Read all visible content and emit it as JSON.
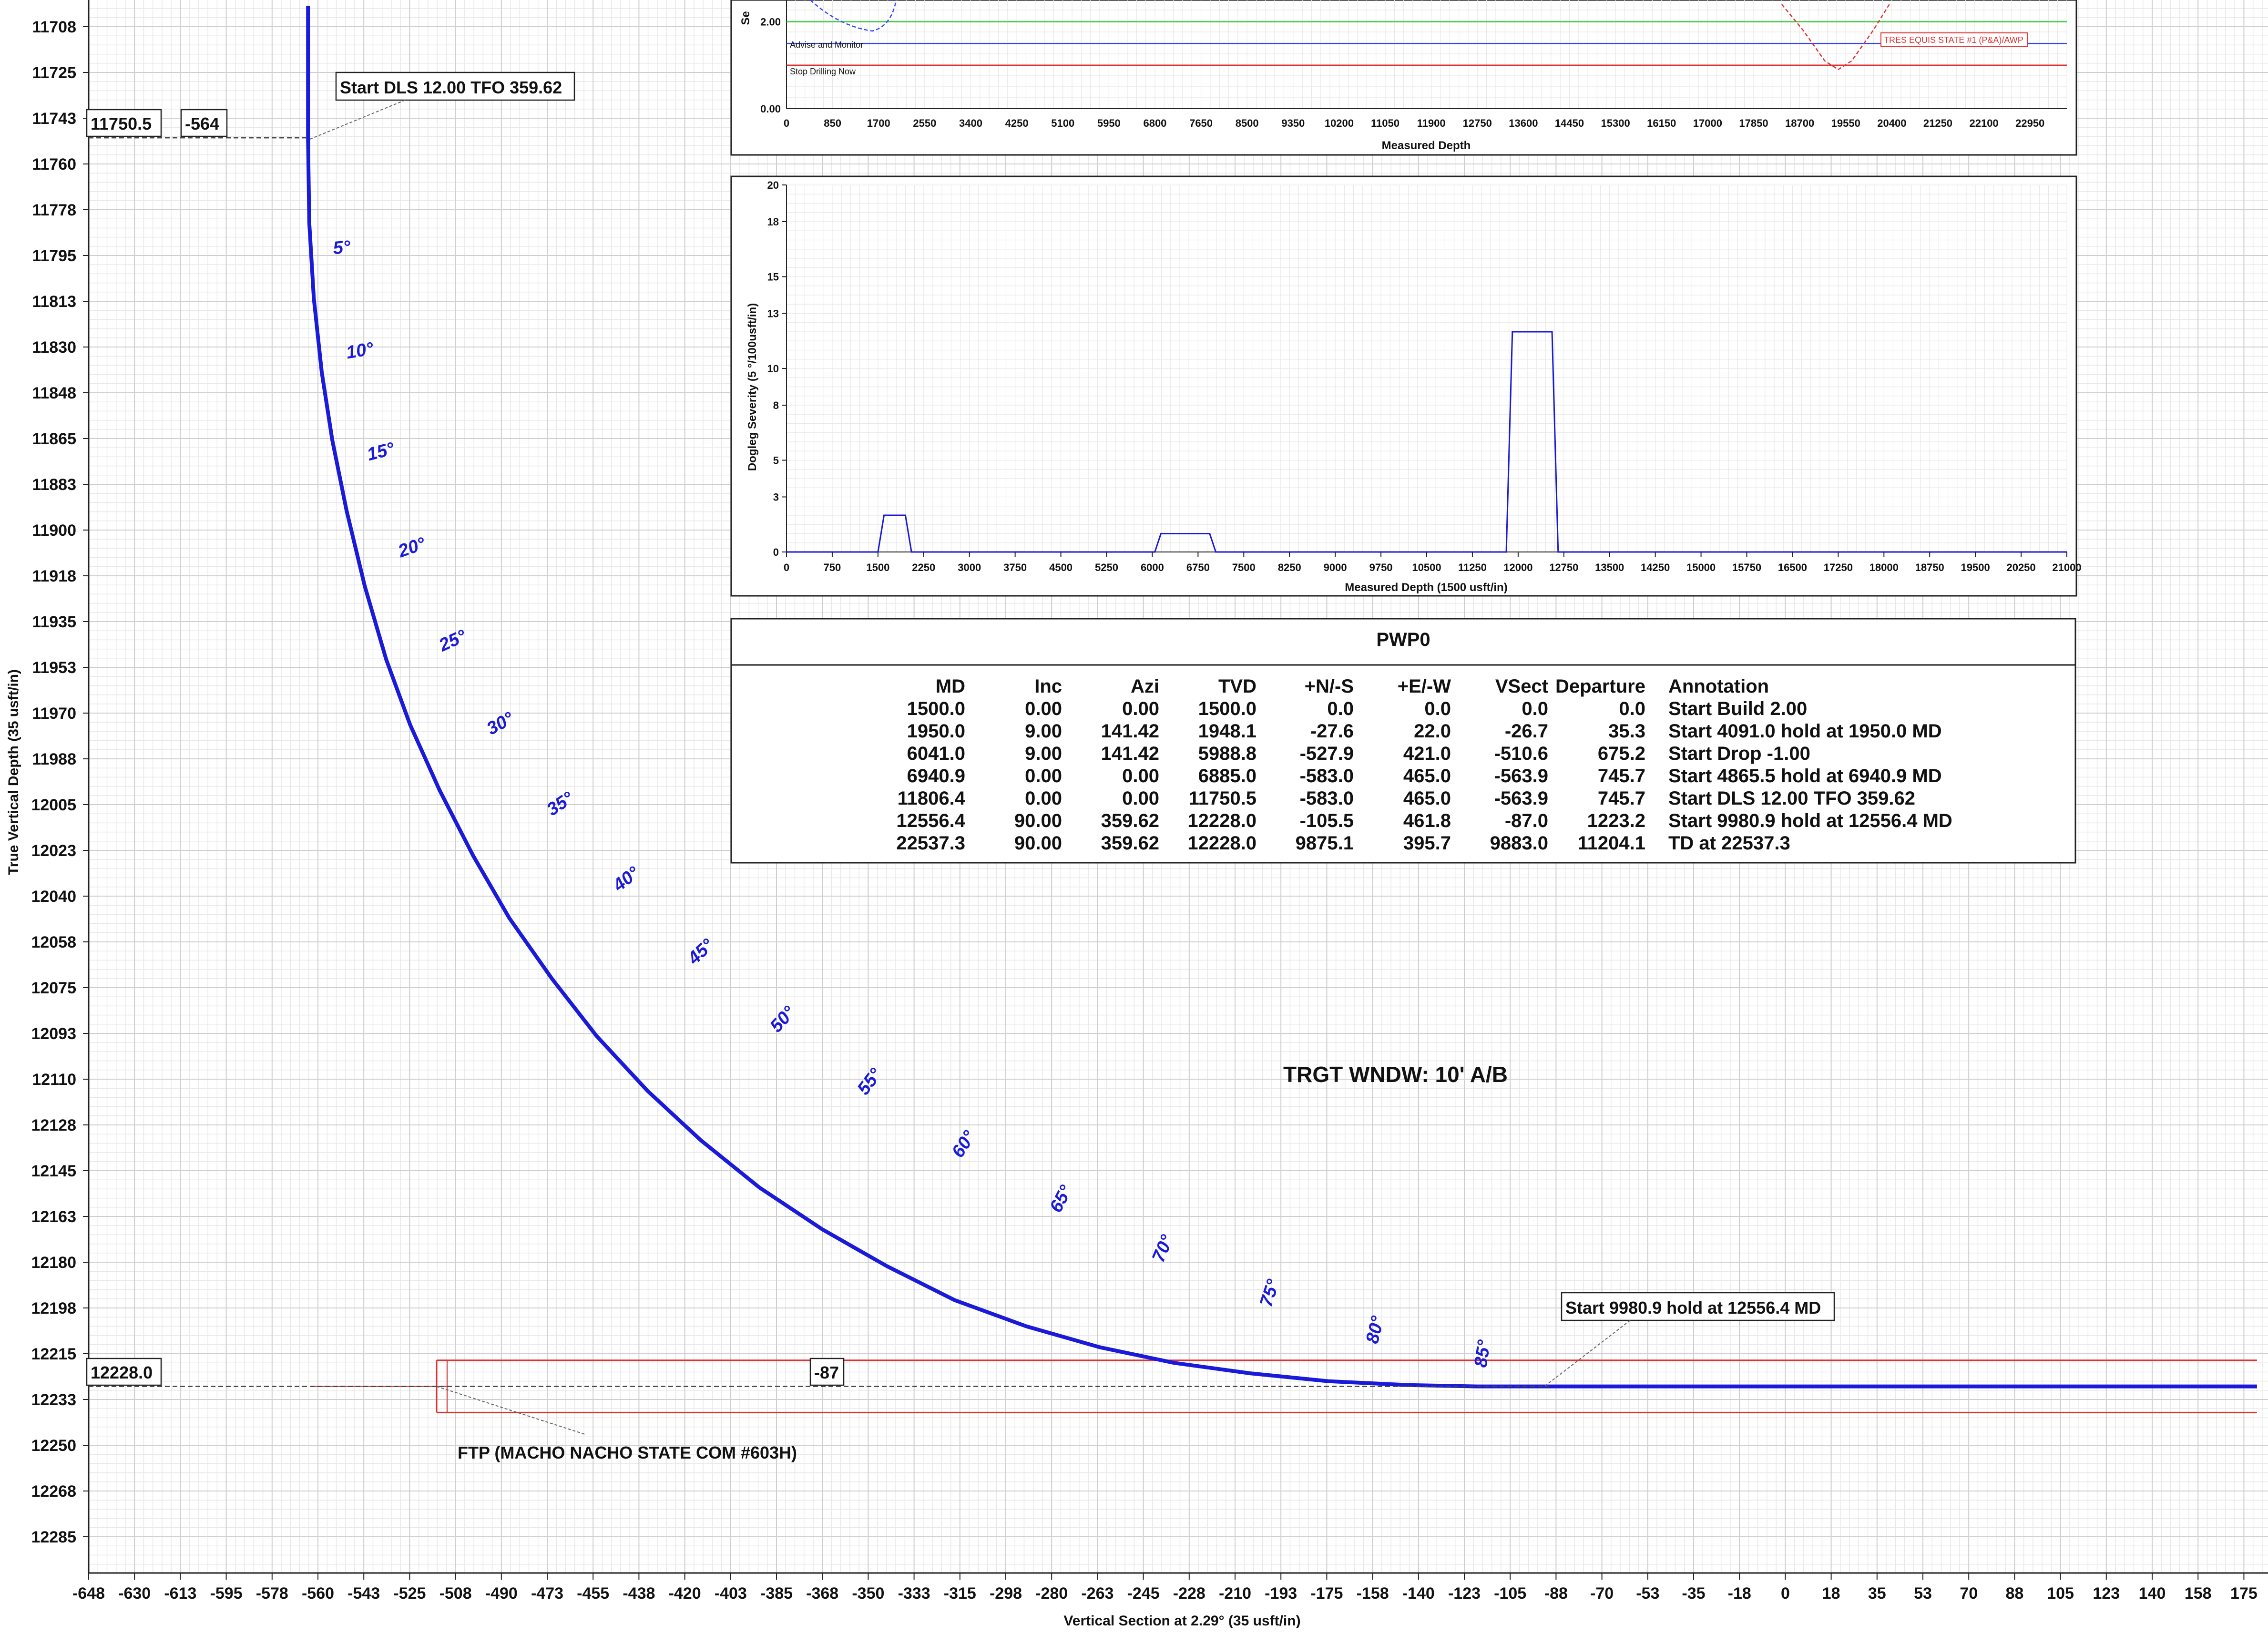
{
  "colors": {
    "well": "#1a1adb",
    "target": "#e03030",
    "grid_minor": "#e8e8e8",
    "grid_major": "#cfcfcf",
    "text": "#111111",
    "advise_line": "#33cc33",
    "stop_line": "#e03030",
    "sep_line": "#3344ff"
  },
  "main_plot": {
    "xlabel": "Vertical Section at 2.29° (35 usft/in)",
    "ylabel": "True Vertical Depth (35 usft/in)",
    "x_ticks": [
      "-648",
      "-630",
      "-613",
      "-595",
      "-578",
      "-560",
      "-543",
      "-525",
      "-508",
      "-490",
      "-473",
      "-455",
      "-438",
      "-420",
      "-403",
      "-385",
      "-368",
      "-350",
      "-333",
      "-315",
      "-298",
      "-280",
      "-263",
      "-245",
      "-228",
      "-210",
      "-193",
      "-175",
      "-158",
      "-140",
      "-123",
      "-105",
      "-88",
      "-70",
      "-53",
      "-35",
      "-18",
      "0",
      "18",
      "35",
      "53",
      "70",
      "88",
      "105",
      "123",
      "140",
      "158",
      "175"
    ],
    "y_ticks": [
      "11708",
      "11725",
      "11743",
      "11760",
      "11778",
      "11795",
      "11813",
      "11830",
      "11848",
      "11865",
      "11883",
      "11900",
      "11918",
      "11935",
      "11953",
      "11970",
      "11988",
      "12005",
      "12023",
      "12040",
      "12058",
      "12075",
      "12093",
      "12110",
      "12128",
      "12145",
      "12163",
      "12180",
      "12198",
      "12215",
      "12233",
      "12250",
      "12268",
      "12285"
    ],
    "label_box_tvd_top": "11750.5",
    "label_box_vs_top": "-564",
    "label_box_tvd_bottom": "12228.0",
    "label_box_vs_bottom": "-87",
    "callout_dls": "Start DLS 12.00 TFO 359.62",
    "callout_hold": "Start 9980.9 hold at 12556.4 MD",
    "callout_ftp": "FTP (MACHO NACHO STATE COM #603H)",
    "target_window_label": "TRGT WNDW: 10' A/B",
    "inclination_labels": [
      "5°",
      "10°",
      "15°",
      "20°",
      "25°",
      "30°",
      "35°",
      "40°",
      "45°",
      "50°",
      "55°",
      "60°",
      "65°",
      "70°",
      "75°",
      "80°",
      "85°"
    ]
  },
  "separation_plot": {
    "xlabel": "Measured Depth",
    "ylabel_partial": "Se",
    "y_ticks": [
      "0.00",
      "2.00"
    ],
    "x_ticks": [
      "0",
      "850",
      "1700",
      "2550",
      "3400",
      "4250",
      "5100",
      "5950",
      "6800",
      "7650",
      "8500",
      "9350",
      "10200",
      "11050",
      "11900",
      "12750",
      "13600",
      "14450",
      "15300",
      "16150",
      "17000",
      "17850",
      "18700",
      "19550",
      "20400",
      "21250",
      "22100",
      "22950"
    ],
    "advise_label": "Advise and Monitor",
    "stop_label": "Stop Drilling Now",
    "offset_label": "TRES EQUIS STATE #1 (P&A)/AWP"
  },
  "dogleg_plot": {
    "xlabel": "Measured Depth (1500 usft/in)",
    "ylabel": "Dogleg Severity (5 °/100usft/in)",
    "y_ticks": [
      "0",
      "3",
      "5",
      "8",
      "10",
      "13",
      "15",
      "18",
      "20"
    ],
    "x_ticks": [
      "0",
      "750",
      "1500",
      "2250",
      "3000",
      "3750",
      "4500",
      "5250",
      "6000",
      "6750",
      "7500",
      "8250",
      "9000",
      "9750",
      "10500",
      "11250",
      "12000",
      "12750",
      "13500",
      "14250",
      "15000",
      "15750",
      "16500",
      "17250",
      "18000",
      "18750",
      "19500",
      "20250",
      "21000"
    ]
  },
  "table": {
    "title": "PWP0",
    "headers": [
      "MD",
      "Inc",
      "Azi",
      "TVD",
      "+N/-S",
      "+E/-W",
      "VSect",
      "Departure",
      "Annotation"
    ],
    "rows": [
      [
        "1500.0",
        "0.00",
        "0.00",
        "1500.0",
        "0.0",
        "0.0",
        "0.0",
        "0.0",
        "Start Build 2.00"
      ],
      [
        "1950.0",
        "9.00",
        "141.42",
        "1948.1",
        "-27.6",
        "22.0",
        "-26.7",
        "35.3",
        "Start 4091.0 hold at 1950.0 MD"
      ],
      [
        "6041.0",
        "9.00",
        "141.42",
        "5988.8",
        "-527.9",
        "421.0",
        "-510.6",
        "675.2",
        "Start Drop -1.00"
      ],
      [
        "6940.9",
        "0.00",
        "0.00",
        "6885.0",
        "-583.0",
        "465.0",
        "-563.9",
        "745.7",
        "Start 4865.5 hold at 6940.9 MD"
      ],
      [
        "11806.4",
        "0.00",
        "0.00",
        "11750.5",
        "-583.0",
        "465.0",
        "-563.9",
        "745.7",
        "Start DLS 12.00 TFO 359.62"
      ],
      [
        "12556.4",
        "90.00",
        "359.62",
        "12228.0",
        "-105.5",
        "461.8",
        "-87.0",
        "1223.2",
        "Start 9980.9 hold at 12556.4 MD"
      ],
      [
        "22537.3",
        "90.00",
        "359.62",
        "12228.0",
        "9875.1",
        "395.7",
        "9883.0",
        "11204.1",
        "TD at 22537.3"
      ]
    ]
  },
  "chart_data": [
    {
      "type": "line",
      "title": "",
      "xlabel": "Vertical Section at 2.29° (35 usft/in)",
      "ylabel": "True Vertical Depth (35 usft/in)",
      "xlim": [
        -648,
        180
      ],
      "ylim": [
        12300,
        11700
      ],
      "series": [
        {
          "x": [
            -563.9,
            -563.9,
            -563.4,
            -561.6,
            -558.6,
            -554.7,
            -549.4,
            -542.6,
            -534.2,
            -524.8,
            -513.9,
            -501.1,
            -487.0,
            -471.2,
            -453.7,
            -434.6,
            -413.9,
            -391.6,
            -367.9,
            -343.1,
            -317.1,
            -290.0,
            -262.2,
            -233.6,
            -204.4,
            -174.5,
            -144.1,
            -118.0,
            -97.0,
            -87.0,
            180.0
          ],
          "y": [
            11700,
            11750.5,
            11783,
            11812,
            11840,
            11866,
            11893,
            11922,
            11950,
            11975,
            12000,
            12025,
            12049,
            12072,
            12094,
            12115,
            12134,
            12152,
            12168,
            12182,
            12195,
            12205,
            12213,
            12219,
            12223,
            12226,
            12227.5,
            12228,
            12228,
            12228,
            12228
          ]
        }
      ],
      "inclination_markers": [
        {
          "label": "5°",
          "x": -560.6,
          "y": 11795
        },
        {
          "label": "10°",
          "x": -555.5,
          "y": 11835
        },
        {
          "label": "15°",
          "x": -547.5,
          "y": 11874
        },
        {
          "label": "20°",
          "x": -535.2,
          "y": 11911
        },
        {
          "label": "25°",
          "x": -519.2,
          "y": 11947
        },
        {
          "label": "30°",
          "x": -500.8,
          "y": 11979
        },
        {
          "label": "35°",
          "x": -477.6,
          "y": 12010
        },
        {
          "label": "40°",
          "x": -451.7,
          "y": 12039
        },
        {
          "label": "45°",
          "x": -422.8,
          "y": 12067
        },
        {
          "label": "50°",
          "x": -391.2,
          "y": 12093
        },
        {
          "label": "55°",
          "x": -357.6,
          "y": 12117
        },
        {
          "label": "60°",
          "x": -321.2,
          "y": 12141
        },
        {
          "label": "65°",
          "x": -283.5,
          "y": 12162
        },
        {
          "label": "70°",
          "x": -244.1,
          "y": 12181
        },
        {
          "label": "75°",
          "x": -203.0,
          "y": 12198
        },
        {
          "label": "80°",
          "x": -162.5,
          "y": 12212
        },
        {
          "label": "85°",
          "x": -121.1,
          "y": 12221
        }
      ],
      "target_window": {
        "x_start": -515,
        "x_end": 180,
        "tvd_top": 12218,
        "tvd_bottom": 12238,
        "tvd_center": 12228.0
      }
    },
    {
      "type": "line",
      "title": "",
      "xlabel": "Measured Depth",
      "xlim": [
        0,
        23800
      ],
      "ylim": [
        0,
        2.5
      ],
      "series": [
        {
          "name": "Advise and Monitor",
          "x": [
            0,
            23800
          ],
          "y": [
            2.0,
            2.0
          ]
        },
        {
          "name": "Stop Drilling Now",
          "x": [
            0,
            23800
          ],
          "y": [
            1.5,
            1.5
          ]
        },
        {
          "x": [
            0,
            23800
          ],
          "y": [
            1.0,
            1.0
          ]
        },
        {
          "name": "TRES EQUIS STATE #1 (P&A)/AWP",
          "x": [
            18500,
            18900,
            19300,
            19550,
            19800,
            20200,
            20500
          ],
          "y": [
            2.4,
            1.8,
            1.1,
            0.9,
            1.1,
            1.8,
            2.4
          ]
        }
      ]
    },
    {
      "type": "line",
      "title": "",
      "xlabel": "Measured Depth (1500 usft/in)",
      "ylabel": "Dogleg Severity (5 °/100usft/in)",
      "xlim": [
        0,
        21000
      ],
      "ylim": [
        0,
        20
      ],
      "series": [
        {
          "x": [
            0,
            1500,
            1600,
            1950,
            2050,
            6041,
            6141,
            6941,
            7041,
            11806,
            11906,
            12556,
            12656,
            21000
          ],
          "y": [
            0,
            0,
            2.0,
            2.0,
            0,
            0,
            1.0,
            1.0,
            0,
            0,
            12.0,
            12.0,
            0,
            0
          ]
        }
      ]
    }
  ]
}
